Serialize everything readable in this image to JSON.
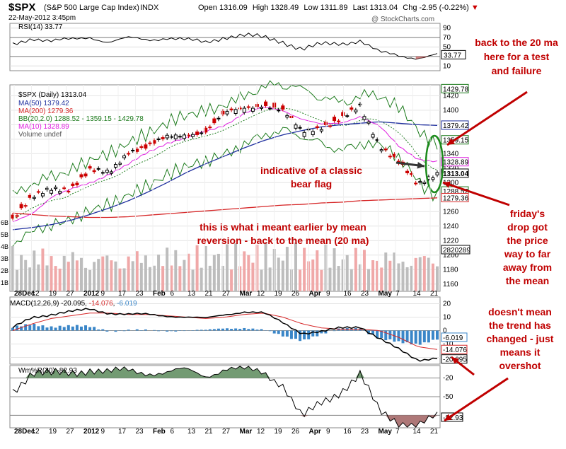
{
  "header": {
    "symbol": "$SPX",
    "name": "(S&P 500 Large Cap Index)",
    "exchange": "INDX",
    "date": "22-May-2012 3:45pm",
    "open_label": "Open",
    "open": "1316.09",
    "high_label": "High",
    "high": "1328.49",
    "low_label": "Low",
    "low": "1311.89",
    "last_label": "Last",
    "last": "1313.04",
    "chg_label": "Chg",
    "chg": "-2.95 (-0.22%)",
    "watermark": "@ StockCharts.com"
  },
  "colors": {
    "price_up": "#000000",
    "price_down": "#cc0000",
    "ma50": "#1f2f9e",
    "ma200": "#d62728",
    "bb": "#1b7a1b",
    "ma10": "#e020e0",
    "vol_up": "#bdbdbd",
    "vol_down": "#f0a8a8",
    "macd_hist": "#3a86c8",
    "wmr_fill": "#5a8a5a",
    "wmr_low_fill": "#a06060",
    "annotation": "#c00000"
  },
  "panels": {
    "rsi": {
      "label": "RSI(14) 33.77",
      "ticks": [
        "90",
        "70",
        "50",
        "30",
        "10"
      ],
      "last_label": "33.77"
    },
    "price": {
      "title": "$SPX (Daily) 1313.04",
      "legend": [
        {
          "text": "MA(50) 1379.42",
          "color": "#1f2f9e"
        },
        {
          "text": "MA(200) 1279.36",
          "color": "#d62728"
        },
        {
          "text": "BB(20,2.0) 1288.52 - 1359.15 - 1429.78",
          "color": "#1b7a1b"
        },
        {
          "text": "MA(10) 1328.89",
          "color": "#e020e0"
        },
        {
          "text": "Volume undef",
          "color": "#555555"
        }
      ],
      "ticks": [
        "1420",
        "1400",
        "1380",
        "1360",
        "1340",
        "1320",
        "1300",
        "1280",
        "1260",
        "1240",
        "1220",
        "1200",
        "1180",
        "1160"
      ],
      "right_labels": [
        {
          "text": "1429.78",
          "value": 1429.78
        },
        {
          "text": "1379.42",
          "value": 1379.42
        },
        {
          "text": "1359.15",
          "value": 1359.15
        },
        {
          "text": "1328.89",
          "value": 1328.89
        },
        {
          "text": "1313.04",
          "value": 1313.04
        },
        {
          "text": "1288.52",
          "value": 1288.52
        },
        {
          "text": "1279.36",
          "value": 1279.36
        }
      ],
      "vol_label": "2820289",
      "vol_ticks_left": [
        "6B",
        "5B",
        "4B",
        "3B",
        "2B",
        "1B"
      ]
    },
    "macd": {
      "label": "MACD(12,26,9)",
      "macd_value": "-20.095",
      "signal_value": "-14.076",
      "hist_value": "-6.019",
      "ticks": [
        "20",
        "10",
        "0",
        "-10",
        "-20"
      ],
      "right_labels": [
        "-6.019",
        "-14.076",
        "-20.095"
      ]
    },
    "wmr": {
      "label": "Wm%R(30) -82.93",
      "ticks": [
        "-20",
        "-50",
        "-80"
      ],
      "last_label": "-82.93"
    }
  },
  "x_axis_labels": [
    "28Dec",
    "12",
    "19",
    "27",
    "2012",
    "9",
    "17",
    "23",
    "Feb",
    "6",
    "13",
    "21",
    "27",
    "Mar",
    "12",
    "19",
    "26",
    "Apr",
    "9",
    "16",
    "23",
    "May",
    "7",
    "14",
    "21"
  ],
  "annotations": [
    {
      "text": "back to the 20 ma here for a test and failure",
      "lines": [
        "back to the 20 ma",
        "here for a test",
        "and failure"
      ]
    },
    {
      "text": "indicative of a classic bear flag",
      "lines": [
        "indicative of a classic",
        "bear flag"
      ]
    },
    {
      "text": "this is what i meant earlier by mean reversion - back to the mean (20 ma)",
      "lines": [
        "this is what i meant earlier by mean",
        "reversion - back to the mean (20 ma)"
      ]
    },
    {
      "text": "friday's drop got the price way to far away from the mean",
      "lines": [
        "friday's",
        "drop got",
        "the price",
        "way to far",
        "away from",
        "the mean"
      ]
    },
    {
      "text": "doesn't mean the trend has changed - just means it overshot",
      "lines": [
        "doesn't mean",
        "the trend has",
        "changed - just",
        "means it",
        "overshot"
      ]
    }
  ],
  "chart_data": {
    "type": "line",
    "title": "$SPX (Daily) 1313.04",
    "x": [
      "2011-12-28",
      "2012-01-03",
      "2012-01-09",
      "2012-01-17",
      "2012-01-23",
      "2012-01-30",
      "2012-02-06",
      "2012-02-13",
      "2012-02-21",
      "2012-02-27",
      "2012-03-05",
      "2012-03-12",
      "2012-03-19",
      "2012-03-26",
      "2012-04-02",
      "2012-04-09",
      "2012-04-16",
      "2012-04-23",
      "2012-04-30",
      "2012-05-07",
      "2012-05-14",
      "2012-05-18",
      "2012-05-22"
    ],
    "series": [
      {
        "name": "$SPX",
        "values": [
          1250,
          1278,
          1292,
          1293,
          1316,
          1313,
          1344,
          1350,
          1362,
          1367,
          1371,
          1395,
          1404,
          1408,
          1398,
          1370,
          1378,
          1387,
          1404,
          1353,
          1330,
          1295,
          1313
        ]
      },
      {
        "name": "MA(50)",
        "values": [
          1235,
          1238,
          1242,
          1248,
          1256,
          1265,
          1275,
          1287,
          1300,
          1314,
          1326,
          1337,
          1348,
          1358,
          1366,
          1372,
          1377,
          1380,
          1382,
          1384,
          1382,
          1380,
          1379
        ]
      },
      {
        "name": "MA(200)",
        "values": [
          1258,
          1256,
          1254,
          1253,
          1252,
          1252,
          1253,
          1255,
          1257,
          1259,
          1261,
          1263,
          1265,
          1267,
          1269,
          1270,
          1272,
          1273,
          1275,
          1276,
          1277,
          1278,
          1279
        ]
      },
      {
        "name": "MA(10)",
        "values": [
          1245,
          1258,
          1280,
          1290,
          1300,
          1312,
          1325,
          1342,
          1355,
          1362,
          1370,
          1380,
          1396,
          1404,
          1400,
          1388,
          1380,
          1382,
          1392,
          1378,
          1350,
          1333,
          1329
        ]
      }
    ],
    "ylim": [
      1150,
      1435
    ],
    "rsi": {
      "values": [
        55,
        70,
        62,
        65,
        72,
        60,
        68,
        66,
        70,
        64,
        60,
        72,
        74,
        70,
        62,
        45,
        55,
        58,
        64,
        38,
        32,
        28,
        33.77
      ],
      "ylim": [
        0,
        100
      ]
    },
    "macd": {
      "macd": [
        2,
        10,
        12,
        14,
        16,
        13,
        12,
        12,
        11,
        10,
        9,
        12,
        14,
        13,
        6,
        -2,
        -1,
        2,
        3,
        -6,
        -14,
        -22,
        -20.095
      ],
      "signal": [
        0,
        5,
        9,
        11,
        13,
        13,
        12,
        12,
        11,
        10,
        9,
        10,
        12,
        13,
        10,
        5,
        2,
        1,
        1,
        0,
        -5,
        -12,
        -14.076
      ],
      "ylim": [
        -25,
        25
      ]
    },
    "wmr": {
      "values": [
        -40,
        -10,
        -15,
        -12,
        -5,
        -12,
        -8,
        -10,
        -12,
        -8,
        -15,
        -5,
        -8,
        -10,
        -30,
        -85,
        -60,
        -40,
        -15,
        -75,
        -90,
        -95,
        -82.93
      ],
      "ylim": [
        -100,
        0
      ]
    }
  }
}
